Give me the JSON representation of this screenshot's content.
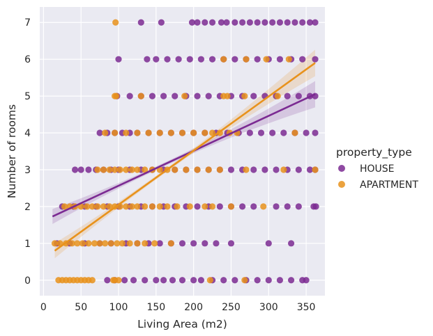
{
  "chart_data": {
    "type": "scatter",
    "title": "",
    "xlabel": "Living Area (m2)",
    "ylabel": "Number of rooms",
    "xlim": [
      -5,
      375
    ],
    "ylim": [
      -0.42,
      7.42
    ],
    "x_ticks": [
      0,
      50,
      100,
      150,
      200,
      250,
      300,
      350
    ],
    "y_ticks": [
      0,
      1,
      2,
      3,
      4,
      5,
      6,
      7
    ],
    "grid": true,
    "legend": {
      "title": "property_type",
      "placement": "right"
    },
    "series": [
      {
        "name": "HOUSE",
        "color": "#7B2A92",
        "trend": {
          "x": [
            12,
            362
          ],
          "y": [
            1.73,
            5.05
          ]
        },
        "rows": [
          {
            "y": 0,
            "x": [
              85,
              95,
              108,
              120,
              135,
              150,
              160,
              172,
              185,
              200,
              210,
              225,
              240,
              255,
              270,
              285,
              300,
              315,
              330,
              345,
              350
            ]
          },
          {
            "y": 1,
            "x": [
              18,
              35,
              55,
              75,
              90,
              110,
              125,
              140,
              155,
              170,
              185,
              200,
              215,
              230,
              250,
              300,
              330
            ]
          },
          {
            "y": 2,
            "x": [
              25,
              40,
              55,
              70,
              85,
              100,
              115,
              130,
              145,
              160,
              175,
              190,
              205,
              220,
              235,
              250,
              265,
              280,
              310,
              325,
              340,
              360,
              363
            ]
          },
          {
            "y": 3,
            "x": [
              42,
              50,
              60,
              70,
              80,
              90,
              100,
              115,
              130,
              145,
              160,
              175,
              190,
              205,
              220,
              235,
              250,
              265,
              280,
              295,
              310,
              325,
              340,
              355,
              362
            ]
          },
          {
            "y": 4,
            "x": [
              75,
              85,
              95,
              105,
              115,
              125,
              140,
              155,
              170,
              185,
              200,
              215,
              230,
              245,
              260,
              275,
              290,
              305,
              320,
              335,
              350,
              362
            ]
          },
          {
            "y": 5,
            "x": [
              98,
              115,
              130,
              145,
              160,
              175,
              190,
              205,
              220,
              235,
              250,
              265,
              280,
              295,
              310,
              325,
              340,
              355,
              362
            ]
          },
          {
            "y": 6,
            "x": [
              100,
              138,
              150,
              165,
              180,
              195,
              210,
              225,
              240,
              255,
              270,
              285,
              300,
              315,
              330,
              345,
              362
            ]
          },
          {
            "y": 7,
            "x": [
              130,
              157,
              198,
              205,
              215,
              225,
              237,
              244,
              255,
              265,
              275,
              285,
              295,
              305,
              315,
              325,
              335,
              345,
              355,
              362
            ]
          }
        ]
      },
      {
        "name": "APARTMENT",
        "color": "#E8921C",
        "trend": {
          "x": [
            15,
            362
          ],
          "y": [
            0.8,
            5.9
          ]
        },
        "rows": [
          {
            "y": 0,
            "x": [
              20,
              25,
              30,
              35,
              40,
              45,
              50,
              55,
              60,
              65,
              93,
              95,
              100,
              222,
              268
            ]
          },
          {
            "y": 1,
            "x": [
              15,
              22,
              30,
              38,
              45,
              52,
              60,
              68,
              75,
              82,
              90,
              98,
              105,
              115,
              125,
              135,
              148,
              170
            ]
          },
          {
            "y": 2,
            "x": [
              28,
              35,
              42,
              50,
              58,
              65,
              72,
              80,
              88,
              95,
              102,
              110,
              118,
              125,
              135,
              145,
              155,
              165,
              178,
              195,
              215,
              225,
              250,
              293
            ]
          },
          {
            "y": 3,
            "x": [
              72,
              80,
              88,
              95,
              102,
              110,
              118,
              125,
              135,
              145,
              155,
              165,
              175,
              190,
              205,
              220,
              235,
              270,
              320,
              362
            ]
          },
          {
            "y": 4,
            "x": [
              82,
              95,
              110,
              125,
              140,
              155,
              170,
              185,
              200,
              215,
              225,
              235,
              248,
              258,
              335
            ]
          },
          {
            "y": 5,
            "x": [
              95,
              97,
              130,
              188,
              240,
              245,
              268,
              312
            ]
          },
          {
            "y": 6,
            "x": [
              240,
              270,
              297,
              327
            ]
          },
          {
            "y": 7,
            "x": [
              96
            ]
          }
        ]
      }
    ]
  }
}
